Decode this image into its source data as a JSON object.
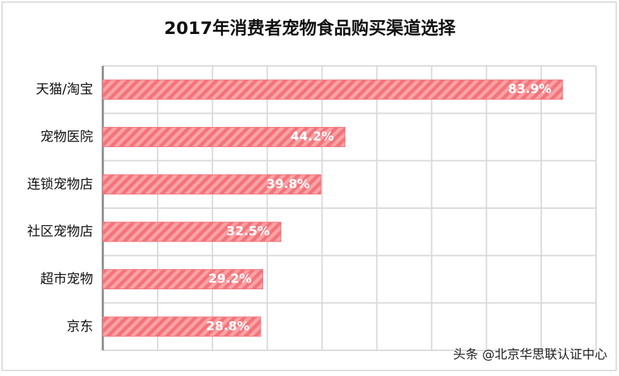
{
  "chart_data": {
    "type": "bar",
    "orientation": "horizontal",
    "title": "2017年消费者宠物食品购买渠道选择",
    "categories": [
      "天猫/淘宝",
      "宠物医院",
      "连锁宠物店",
      "社区宠物店",
      "超市宠物",
      "京东"
    ],
    "values": [
      83.9,
      44.2,
      39.8,
      32.5,
      29.2,
      28.8
    ],
    "value_labels": [
      "83.9%",
      "44.2%",
      "39.8%",
      "32.5%",
      "29.2%",
      "28.8%"
    ],
    "color": "#f4737a",
    "xlim": [
      0,
      90
    ],
    "xticks": [
      0,
      10,
      20,
      30,
      40,
      50,
      60,
      70,
      80,
      90
    ],
    "grid": true,
    "watermark": "头条 @北京华思联认证中心"
  }
}
